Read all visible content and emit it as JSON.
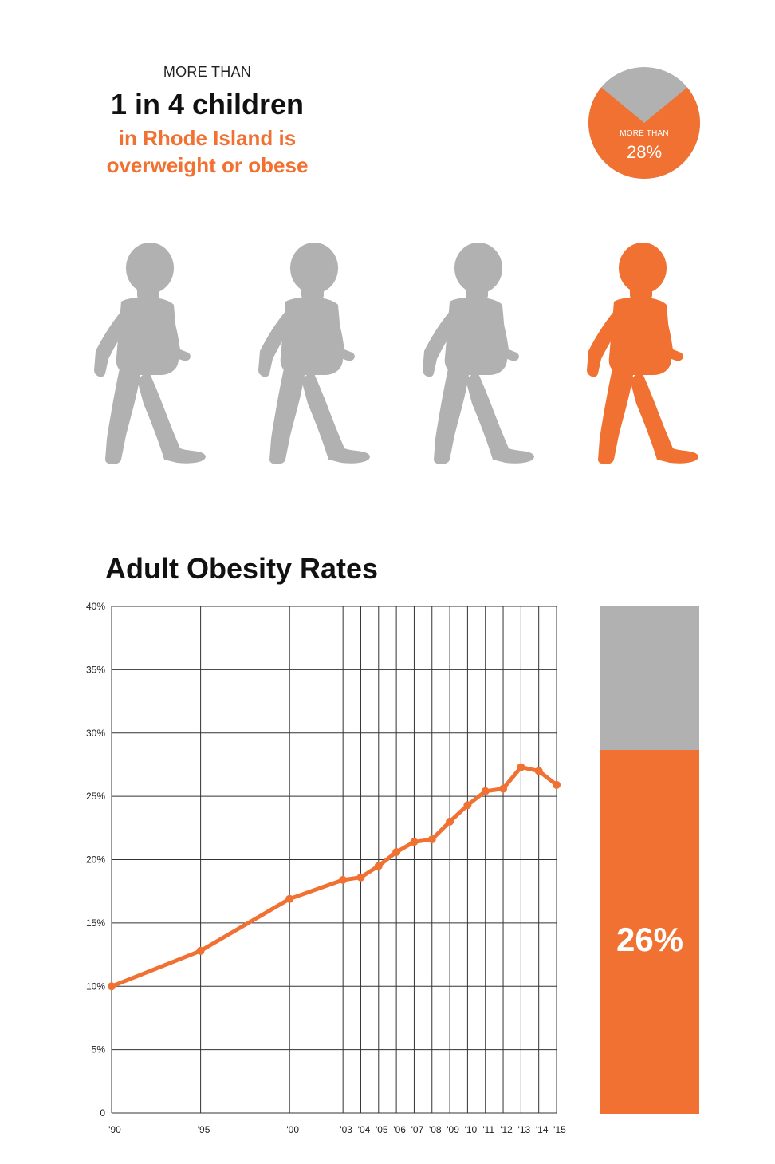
{
  "header": {
    "more_than": "MORE THAN",
    "headline": "1 in 4 children",
    "subline_1": "in Rhode Island is",
    "subline_2": "overweight or obese"
  },
  "pie": {
    "label_small": "MORE THAN",
    "label_big": "28%",
    "value": 28,
    "color_highlight": "#f07132",
    "color_rest": "#b1b1b1"
  },
  "icons": {
    "child_icon": "child-walking-silhouette",
    "count": 4,
    "highlighted_index": 3,
    "color_default": "#b1b1b1",
    "color_highlight": "#f07132"
  },
  "chart_data": {
    "type": "line",
    "title": "Adult Obesity Rates",
    "xlabel": "",
    "ylabel": "",
    "x": [
      1990,
      1995,
      2000,
      2003,
      2004,
      2005,
      2006,
      2007,
      2008,
      2009,
      2010,
      2011,
      2012,
      2013,
      2014,
      2015
    ],
    "x_tick_labels": [
      "'90",
      "'95",
      "'00",
      "'03",
      "'04",
      "'05",
      "'06",
      "'07",
      "'08",
      "'09",
      "'10",
      "'11",
      "'12",
      "'13",
      "'14",
      "'15"
    ],
    "series": [
      {
        "values": [
          10.0,
          12.8,
          16.9,
          18.4,
          18.6,
          19.5,
          20.6,
          21.4,
          21.6,
          23.0,
          24.3,
          25.4,
          25.6,
          27.3,
          27.0,
          25.9
        ]
      }
    ],
    "ylim": [
      0,
      40
    ],
    "y_ticks": [
      0,
      5,
      10,
      15,
      20,
      25,
      30,
      35,
      40
    ],
    "y_tick_labels": [
      "0",
      "5%",
      "10%",
      "15%",
      "20%",
      "25%",
      "30%",
      "35%",
      "40%"
    ],
    "grid": true,
    "line_color": "#f07132",
    "bar_value": 26,
    "bar_label": "26%"
  }
}
